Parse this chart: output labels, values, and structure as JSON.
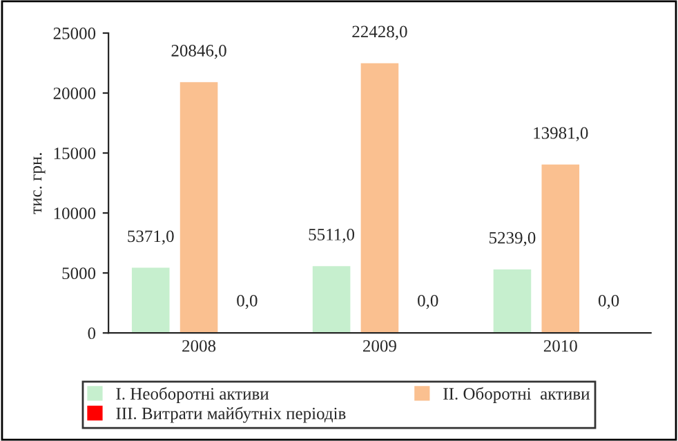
{
  "chart_data": {
    "type": "bar",
    "ylabel": "тис. грн.",
    "categories": [
      "2008",
      "2009",
      "2010"
    ],
    "series": [
      {
        "name": "I. Необоротні активи",
        "color": "#c6efce",
        "values": [
          5371.0,
          5511.0,
          5239.0
        ],
        "value_labels": [
          "5371,0",
          "5511,0",
          "5239,0"
        ]
      },
      {
        "name": "II. Оборотні  активи",
        "color": "#fac090",
        "values": [
          20846.0,
          22428.0,
          13981.0
        ],
        "value_labels": [
          "20846,0",
          "22428,0",
          "13981,0"
        ]
      },
      {
        "name": "III. Витрати майбутніх періодів",
        "color": "#ff0000",
        "values": [
          0.0,
          0.0,
          0.0
        ],
        "value_labels": [
          "0,0",
          "0,0",
          "0,0"
        ]
      }
    ],
    "ylim": [
      0,
      25000
    ],
    "yticks": [
      0,
      5000,
      10000,
      15000,
      20000,
      25000
    ],
    "grid": false,
    "legend": "bottom"
  }
}
